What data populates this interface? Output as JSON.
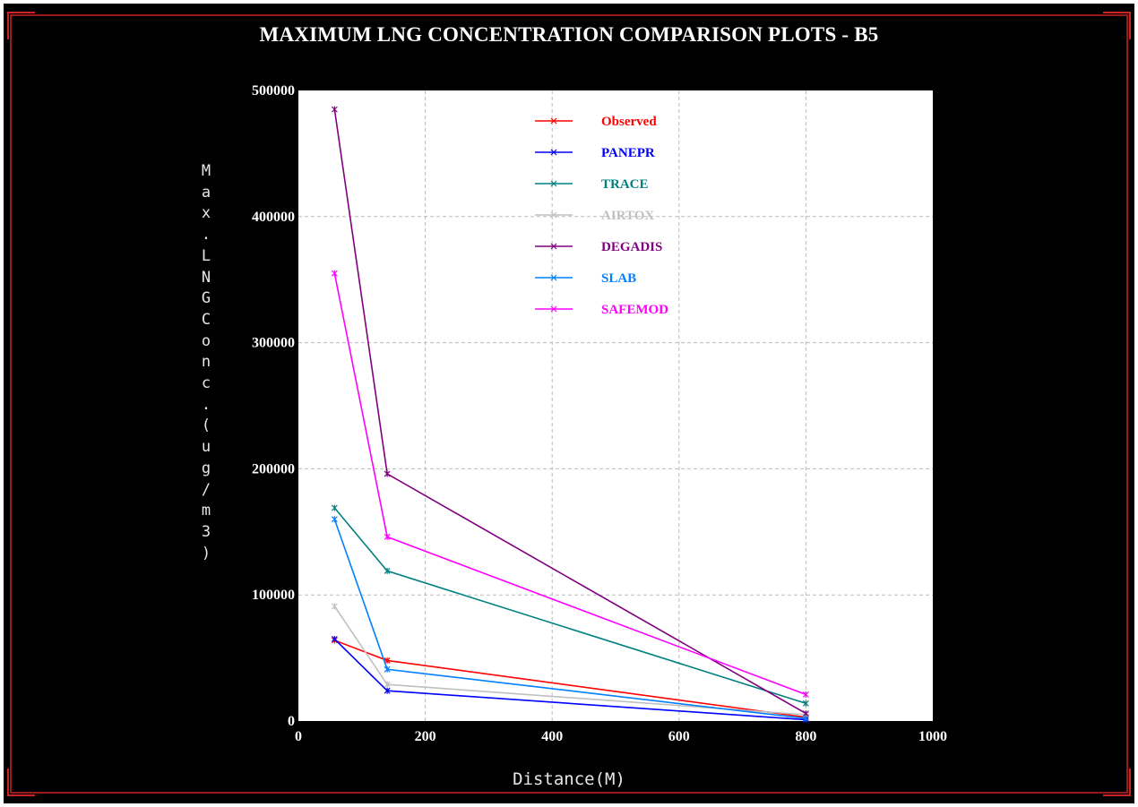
{
  "colors": {
    "background": "#000000",
    "frame": "#cc2222",
    "plot_bg": "#ffffff",
    "grid": "#bbbbbb"
  },
  "chart_data": {
    "type": "line",
    "title": "MAXIMUM LNG CONCENTRATION COMPARISON PLOTS - B5",
    "xlabel": "Distance(M)",
    "ylabel": "Max.LNG Conc.(ug/m3)",
    "xlim": [
      0,
      1000
    ],
    "ylim": [
      0,
      500000
    ],
    "xticks": [
      0,
      200,
      400,
      600,
      800,
      1000
    ],
    "yticks": [
      0,
      100000,
      200000,
      300000,
      400000,
      500000
    ],
    "xtick_labels": [
      "0",
      "200",
      "400",
      "600",
      "800",
      "1000"
    ],
    "ytick_labels": [
      "0",
      "100000",
      "200000",
      "300000",
      "400000",
      "500000"
    ],
    "grid": true,
    "legend_position": "top-center",
    "x": [
      57,
      140,
      800
    ],
    "series": [
      {
        "name": "Observed",
        "color": "#ff0000",
        "values": [
          64000,
          48000,
          3000
        ]
      },
      {
        "name": "PANEPR",
        "color": "#0000ff",
        "values": [
          65000,
          24000,
          1000
        ]
      },
      {
        "name": "TRACE",
        "color": "#008080",
        "values": [
          169000,
          119000,
          14000
        ]
      },
      {
        "name": "AIRTOX",
        "color": "#c0c0c0",
        "values": [
          91000,
          29000,
          5000
        ]
      },
      {
        "name": "DEGADIS",
        "color": "#800080",
        "values": [
          485000,
          196000,
          6000
        ]
      },
      {
        "name": "SLAB",
        "color": "#0080ff",
        "values": [
          160000,
          41000,
          2000
        ]
      },
      {
        "name": "SAFEMOD",
        "color": "#ff00ff",
        "values": [
          355000,
          146000,
          21000
        ]
      }
    ]
  }
}
